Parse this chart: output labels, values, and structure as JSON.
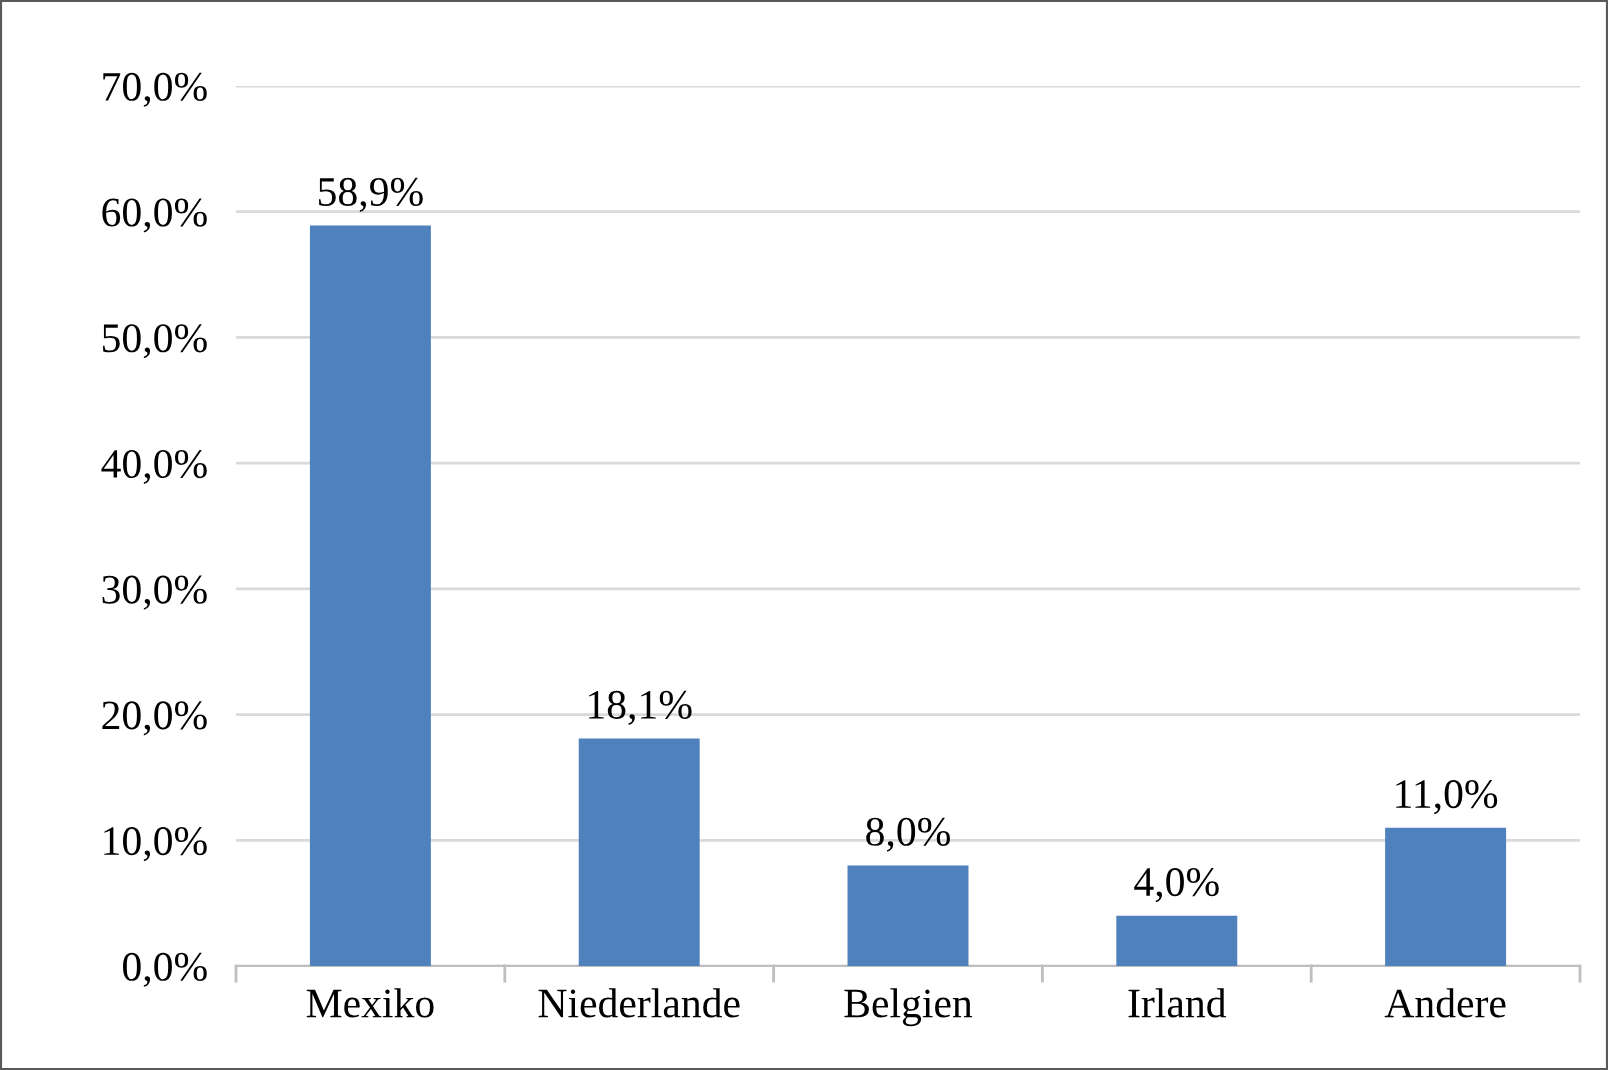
{
  "chart_data": {
    "type": "bar",
    "categories": [
      "Mexiko",
      "Niederlande",
      "Belgien",
      "Irland",
      "Andere"
    ],
    "values": [
      58.9,
      18.1,
      8.0,
      4.0,
      11.0
    ],
    "value_labels": [
      "58,9%",
      "18,1%",
      "8,0%",
      "4,0%",
      "11,0%"
    ],
    "color": "#4f81bd",
    "ylim": [
      0,
      70
    ],
    "yticks": [
      {
        "value": 0,
        "label": "0,0%"
      },
      {
        "value": 10,
        "label": "10,0%"
      },
      {
        "value": 20,
        "label": "20,0%"
      },
      {
        "value": 30,
        "label": "30,0%"
      },
      {
        "value": 40,
        "label": "40,0%"
      },
      {
        "value": 50,
        "label": "50,0%"
      },
      {
        "value": 60,
        "label": "60,0%"
      },
      {
        "value": 70,
        "label": "70,0%"
      }
    ],
    "grid": "y",
    "legend": false
  }
}
